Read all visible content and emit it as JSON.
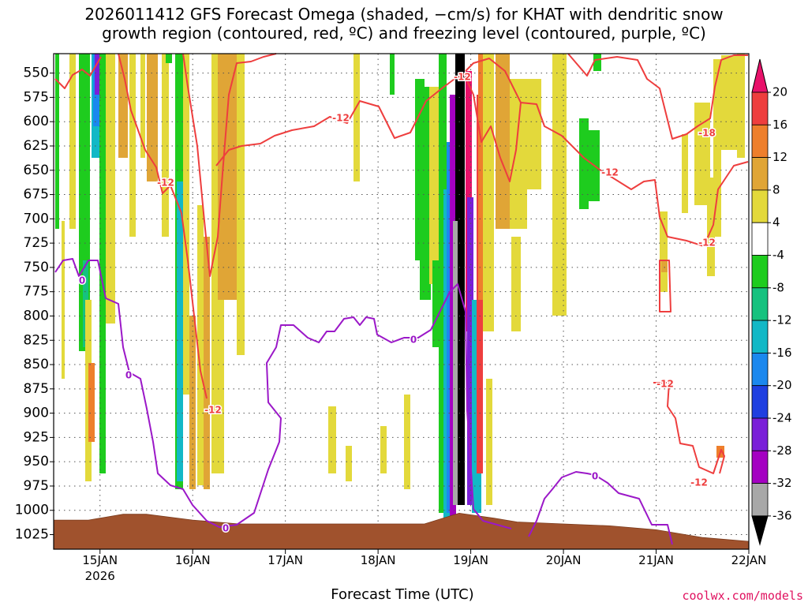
{
  "header": {
    "title_line1": "2026011412 GFS Forecast Omega (shaded, −cm/s) for KHAT with dendritic snow",
    "title_line2": "growth region (contoured, red, ºC) and freezing level (contoured, purple, ºC)"
  },
  "footer": {
    "xlabel": "Forecast Time (UTC)",
    "credit": "coolwx.com/models"
  },
  "chart_data": {
    "type": "heatmap",
    "title": "2026011412 GFS Forecast Omega (shaded, −cm/s) for KHAT with dendritic snow growth region (contoured, red, ºC) and freezing level (contoured, purple, ºC)",
    "xlabel": "Forecast Time (UTC)",
    "ylabel": "",
    "x_range": [
      "2026-01-14T12",
      "2026-01-22T00"
    ],
    "y_range_hpa": [
      1040,
      530
    ],
    "y_scale": "reversed",
    "grid": true,
    "x_ticks": [
      {
        "label": "15JAN",
        "sublabel": "2026",
        "time": "2026-01-15T00"
      },
      {
        "label": "16JAN",
        "sublabel": "",
        "time": "2026-01-16T00"
      },
      {
        "label": "17JAN",
        "sublabel": "",
        "time": "2026-01-17T00"
      },
      {
        "label": "18JAN",
        "sublabel": "",
        "time": "2026-01-18T00"
      },
      {
        "label": "19JAN",
        "sublabel": "",
        "time": "2026-01-19T00"
      },
      {
        "label": "20JAN",
        "sublabel": "",
        "time": "2026-01-20T00"
      },
      {
        "label": "21JAN",
        "sublabel": "",
        "time": "2026-01-21T00"
      },
      {
        "label": "22JAN",
        "sublabel": "",
        "time": "2026-01-22T00"
      }
    ],
    "y_ticks": [
      550,
      575,
      600,
      625,
      650,
      675,
      700,
      725,
      750,
      775,
      800,
      825,
      850,
      875,
      900,
      925,
      950,
      975,
      1000,
      1025
    ],
    "colorbar": {
      "levels": [
        20,
        16,
        12,
        8,
        4,
        -4,
        -8,
        -12,
        -16,
        -20,
        -24,
        -28,
        -32,
        -36
      ],
      "colors": [
        "#e8116a",
        "#ee3e3e",
        "#ee7f2c",
        "#e0a536",
        "#e3d93b",
        "#ffffff",
        "#1ecc1e",
        "#16c27f",
        "#12b8c6",
        "#1b88ee",
        "#1f3fe0",
        "#7a1fd8",
        "#a400c2",
        "#a8a8a8",
        "#000000"
      ]
    },
    "contours": {
      "red_dgz_label": "-12",
      "red_dgz_other_label": "-18",
      "purple_freezing_label": "0",
      "red_color": "#ee3e3e",
      "purple_color": "#9b18c8"
    },
    "terrain_color": "#a0522d",
    "surface_pressure_hpa": [
      1010,
      1010,
      1004,
      1004,
      1010,
      1014,
      1014,
      1014,
      1003,
      1008,
      1012,
      1014,
      1016,
      1020,
      1028,
      1032
    ],
    "surface_times": [
      "2026-01-14T12",
      "2026-01-14T21",
      "2026-01-15T06",
      "2026-01-15T12",
      "2026-01-16T00",
      "2026-01-16T12",
      "2026-01-17T12",
      "2026-01-18T12",
      "2026-01-18T21",
      "2026-01-19T06",
      "2026-01-19T12",
      "2026-01-20T00",
      "2026-01-20T12",
      "2026-01-21T00",
      "2026-01-21T12",
      "2026-01-22T00"
    ]
  }
}
